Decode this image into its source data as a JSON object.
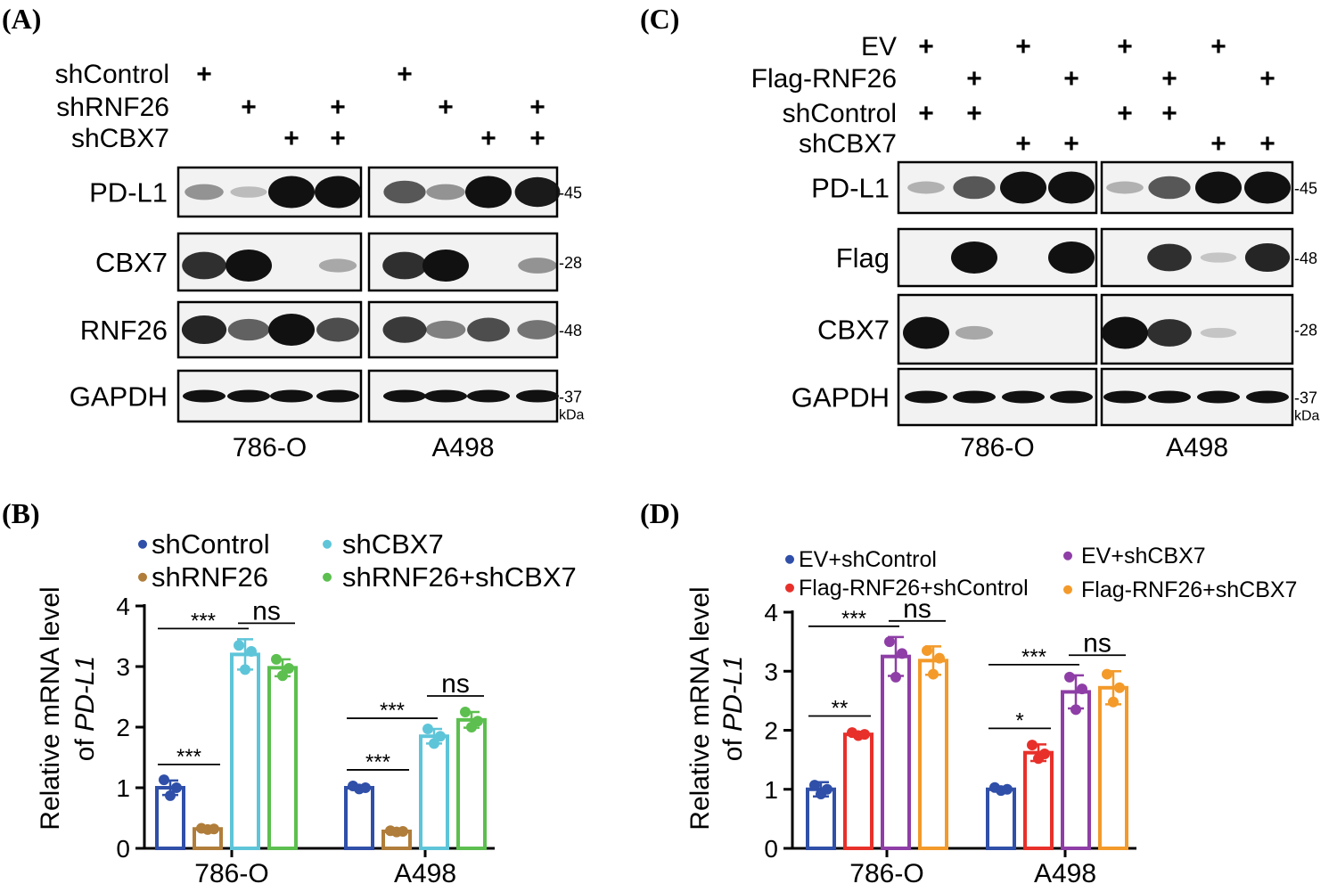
{
  "panel_labels": {
    "a": "(A)",
    "b": "(B)",
    "c": "(C)",
    "d": "(D)"
  },
  "panel_a": {
    "conditions": [
      "shControl",
      "shRNF26",
      "shCBX7"
    ],
    "plus_sign": "+",
    "lanes": [
      {
        "shControl": true,
        "shRNF26": false,
        "shCBX7": false
      },
      {
        "shControl": false,
        "shRNF26": true,
        "shCBX7": false
      },
      {
        "shControl": false,
        "shRNF26": false,
        "shCBX7": true
      },
      {
        "shControl": false,
        "shRNF26": true,
        "shCBX7": true
      }
    ],
    "rows": [
      {
        "protein": "PD-L1",
        "mw": "-45"
      },
      {
        "protein": "CBX7",
        "mw": "-28"
      },
      {
        "protein": "RNF26",
        "mw": "-48"
      },
      {
        "protein": "GAPDH",
        "mw": "-37"
      }
    ],
    "kda": "kDa",
    "cell_lines": [
      "786-O",
      "A498"
    ],
    "band_intensity": {
      "786-O": {
        "PD-L1": [
          0.3,
          0.1,
          1.0,
          1.0
        ],
        "CBX7": [
          0.8,
          1.0,
          0.0,
          0.2
        ],
        "RNF26": [
          0.85,
          0.55,
          1.0,
          0.65
        ],
        "GAPDH": [
          1,
          1,
          1,
          1
        ]
      },
      "A498": {
        "PD-L1": [
          0.6,
          0.3,
          1.0,
          0.9
        ],
        "CBX7": [
          0.8,
          1.0,
          0.0,
          0.3
        ],
        "RNF26": [
          0.75,
          0.4,
          0.65,
          0.45
        ],
        "GAPDH": [
          1,
          1,
          1,
          1
        ]
      }
    }
  },
  "panel_c": {
    "conditions": [
      "EV",
      "Flag-RNF26",
      "shControl",
      "shCBX7"
    ],
    "plus_sign": "+",
    "lanes": [
      {
        "EV": true,
        "Flag-RNF26": false,
        "shControl": true,
        "shCBX7": false
      },
      {
        "EV": false,
        "Flag-RNF26": true,
        "shControl": true,
        "shCBX7": false
      },
      {
        "EV": true,
        "Flag-RNF26": false,
        "shControl": false,
        "shCBX7": true
      },
      {
        "EV": false,
        "Flag-RNF26": true,
        "shControl": false,
        "shCBX7": true
      }
    ],
    "rows": [
      {
        "protein": "PD-L1",
        "mw": "-45"
      },
      {
        "protein": "Flag",
        "mw": "-48"
      },
      {
        "protein": "CBX7",
        "mw": "-28"
      },
      {
        "protein": "GAPDH",
        "mw": "-37"
      }
    ],
    "kda": "kDa",
    "cell_lines": [
      "786-O",
      "A498"
    ],
    "band_intensity": {
      "786-O": {
        "PD-L1": [
          0.15,
          0.6,
          1.0,
          1.0
        ],
        "Flag": [
          0.0,
          1.0,
          0.0,
          1.0
        ],
        "CBX7": [
          1.0,
          0.2,
          0.0,
          0.0
        ],
        "GAPDH": [
          1,
          1,
          1,
          1
        ]
      },
      "A498": {
        "PD-L1": [
          0.15,
          0.6,
          1.0,
          1.0
        ],
        "Flag": [
          0.0,
          0.8,
          0.05,
          0.85
        ],
        "CBX7": [
          1.0,
          0.8,
          0.05,
          0.0
        ],
        "GAPDH": [
          1,
          1,
          1,
          1
        ]
      }
    }
  },
  "chart_data": [
    {
      "type": "bar",
      "panel": "B",
      "ylabel_line1": "Relative mRNA level",
      "ylabel_line2_prefix": "of ",
      "ylabel_line2_italic": "PD-L1",
      "categories": [
        "786-O",
        "A498"
      ],
      "ylim": [
        0,
        4
      ],
      "yticks": [
        "0",
        "1",
        "2",
        "3",
        "4"
      ],
      "legend": "top",
      "series": [
        {
          "name": "shControl",
          "color": "#2f4fa8",
          "values": [
            1.0,
            1.0
          ],
          "errors": [
            0.12,
            0.03
          ],
          "points": [
            [
              1.13,
              0.87,
              1.0
            ],
            [
              1.03,
              0.98,
              1.0
            ]
          ]
        },
        {
          "name": "shRNF26",
          "color": "#b07d3a",
          "values": [
            0.32,
            0.28
          ],
          "errors": [
            0.02,
            0.02
          ],
          "points": [
            [
              0.33,
              0.31,
              0.32
            ],
            [
              0.29,
              0.27,
              0.28
            ]
          ]
        },
        {
          "name": "shCBX7",
          "color": "#5ec5d9",
          "values": [
            3.2,
            1.85
          ],
          "errors": [
            0.25,
            0.12
          ],
          "points": [
            [
              3.35,
              2.95,
              3.25
            ],
            [
              1.97,
              1.73,
              1.85
            ]
          ]
        },
        {
          "name": "shRNF26+shCBX7",
          "color": "#5cbf4f",
          "values": [
            2.98,
            2.12
          ],
          "errors": [
            0.14,
            0.13
          ],
          "points": [
            [
              3.12,
              2.85,
              2.97
            ],
            [
              2.25,
              2.0,
              2.1
            ]
          ]
        }
      ],
      "significance": [
        {
          "group": 0,
          "from": 0,
          "to": 1,
          "label": "***"
        },
        {
          "group": 0,
          "from": 0,
          "to": 2,
          "label": "***"
        },
        {
          "group": 0,
          "from": 2,
          "to": 3,
          "label": "ns"
        },
        {
          "group": 1,
          "from": 0,
          "to": 1,
          "label": "***"
        },
        {
          "group": 1,
          "from": 0,
          "to": 2,
          "label": "***"
        },
        {
          "group": 1,
          "from": 2,
          "to": 3,
          "label": "ns"
        }
      ]
    },
    {
      "type": "bar",
      "panel": "D",
      "ylabel_line1": "Relative mRNA level",
      "ylabel_line2_prefix": "of ",
      "ylabel_line2_italic": "PD-L1",
      "categories": [
        "786-O",
        "A498"
      ],
      "ylim": [
        0,
        4
      ],
      "yticks": [
        "0",
        "1",
        "2",
        "3",
        "4"
      ],
      "legend": "top",
      "series": [
        {
          "name": "EV+shControl",
          "color": "#2f4fa8",
          "values": [
            1.0,
            1.0
          ],
          "errors": [
            0.12,
            0.03
          ],
          "points": [
            [
              1.07,
              0.92,
              1.0
            ],
            [
              1.03,
              0.98,
              1.0
            ]
          ]
        },
        {
          "name": "Flag-RNF26+shControl",
          "color": "#e8302a",
          "values": [
            1.93,
            1.62
          ],
          "errors": [
            0.04,
            0.14
          ],
          "points": [
            [
              1.96,
              1.91,
              1.93
            ],
            [
              1.75,
              1.52,
              1.6
            ]
          ]
        },
        {
          "name": "EV+shCBX7",
          "color": "#8e3ea6",
          "values": [
            3.25,
            2.65
          ],
          "errors": [
            0.33,
            0.28
          ],
          "points": [
            [
              3.5,
              2.9,
              3.3
            ],
            [
              2.9,
              2.35,
              2.7
            ]
          ]
        },
        {
          "name": "Flag-RNF26+shCBX7",
          "color": "#f39a2a",
          "values": [
            3.18,
            2.72
          ],
          "errors": [
            0.24,
            0.28
          ],
          "points": [
            [
              3.35,
              2.95,
              3.22
            ],
            [
              2.95,
              2.48,
              2.72
            ]
          ]
        }
      ],
      "significance": [
        {
          "group": 0,
          "from": 0,
          "to": 1,
          "label": "**"
        },
        {
          "group": 0,
          "from": 0,
          "to": 2,
          "label": "***"
        },
        {
          "group": 0,
          "from": 2,
          "to": 3,
          "label": "ns"
        },
        {
          "group": 1,
          "from": 0,
          "to": 1,
          "label": "*"
        },
        {
          "group": 1,
          "from": 0,
          "to": 2,
          "label": "***"
        },
        {
          "group": 1,
          "from": 2,
          "to": 3,
          "label": "ns"
        }
      ]
    }
  ]
}
